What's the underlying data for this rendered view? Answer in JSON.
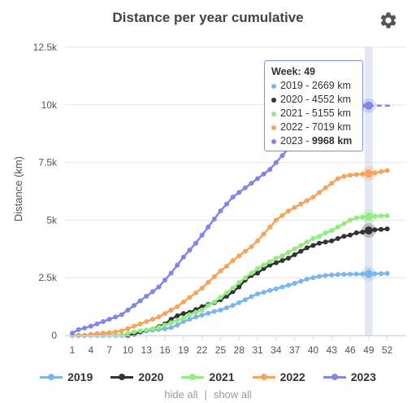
{
  "chart_data": {
    "type": "line",
    "title": "Distance per year cumulative",
    "ylabel": "Distance (km)",
    "xlabel": "",
    "x_ticks": [
      "1",
      "4",
      "7",
      "10",
      "13",
      "16",
      "19",
      "22",
      "25",
      "28",
      "31",
      "34",
      "37",
      "40",
      "43",
      "46",
      "49",
      "52"
    ],
    "y_ticks": [
      {
        "value": 0,
        "label": "0"
      },
      {
        "value": 2500,
        "label": "2.5k"
      },
      {
        "value": 5000,
        "label": "5k"
      },
      {
        "value": 7500,
        "label": "7.5k"
      },
      {
        "value": 10000,
        "label": "10k"
      },
      {
        "value": 12500,
        "label": "12.5k"
      }
    ],
    "xlim": [
      1,
      53
    ],
    "ylim": [
      0,
      12500
    ],
    "grid": "horizontal",
    "legend_position": "bottom",
    "highlight_week": 49,
    "series": [
      {
        "name": "2019",
        "color": "#7cb5ec",
        "values": [
          0,
          0,
          0,
          0,
          0,
          0,
          0,
          0,
          0,
          40,
          100,
          150,
          200,
          230,
          260,
          290,
          340,
          440,
          600,
          700,
          800,
          880,
          960,
          1040,
          1100,
          1200,
          1300,
          1420,
          1550,
          1680,
          1800,
          1870,
          1950,
          2020,
          2100,
          2180,
          2260,
          2350,
          2440,
          2500,
          2560,
          2600,
          2620,
          2640,
          2650,
          2655,
          2660,
          2665,
          2669,
          2672,
          2680,
          2690
        ]
      },
      {
        "name": "2020",
        "color": "#333333",
        "values": [
          0,
          0,
          0,
          0,
          0,
          0,
          0,
          0,
          0,
          0,
          50,
          150,
          230,
          280,
          380,
          500,
          700,
          850,
          950,
          1000,
          1120,
          1250,
          1340,
          1420,
          1550,
          1700,
          1900,
          2100,
          2400,
          2600,
          2700,
          2900,
          3050,
          3150,
          3250,
          3350,
          3500,
          3650,
          3800,
          3900,
          4000,
          4050,
          4100,
          4200,
          4300,
          4350,
          4450,
          4480,
          4552,
          4580,
          4600,
          4620
        ]
      },
      {
        "name": "2021",
        "color": "#90ed7d",
        "values": [
          0,
          0,
          0,
          0,
          0,
          0,
          0,
          0,
          0,
          100,
          150,
          200,
          240,
          280,
          350,
          450,
          550,
          650,
          750,
          900,
          1000,
          1100,
          1300,
          1450,
          1650,
          1850,
          2050,
          2300,
          2500,
          2700,
          2900,
          3050,
          3200,
          3350,
          3450,
          3600,
          3750,
          3900,
          4050,
          4200,
          4300,
          4450,
          4550,
          4700,
          4850,
          5000,
          5100,
          5130,
          5155,
          5170,
          5180,
          5190
        ]
      },
      {
        "name": "2022",
        "color": "#f7a35c",
        "values": [
          0,
          0,
          0,
          50,
          80,
          100,
          120,
          150,
          200,
          300,
          400,
          500,
          600,
          700,
          800,
          950,
          1100,
          1250,
          1450,
          1650,
          1850,
          2050,
          2300,
          2550,
          2800,
          3000,
          3250,
          3450,
          3650,
          3850,
          4100,
          4400,
          4700,
          5000,
          5200,
          5400,
          5550,
          5700,
          5850,
          6000,
          6200,
          6400,
          6600,
          6800,
          6900,
          6950,
          6980,
          7000,
          7019,
          7050,
          7100,
          7150
        ]
      },
      {
        "name": "2023",
        "color": "#8085e9",
        "values": [
          100,
          250,
          320,
          400,
          500,
          600,
          700,
          800,
          900,
          1100,
          1300,
          1500,
          1700,
          1900,
          2100,
          2400,
          2700,
          3050,
          3400,
          3700,
          4000,
          4350,
          4700,
          5050,
          5400,
          5700,
          6000,
          6200,
          6400,
          6600,
          6800,
          7000,
          7200,
          7500,
          7800,
          8100,
          8400,
          8700,
          9000,
          9300,
          9500,
          9650,
          9800,
          9900,
          9940,
          9950,
          9955,
          9960,
          9968
        ]
      }
    ]
  },
  "tooltip": {
    "title": "Week: 49",
    "rows": [
      {
        "label": "2019 - 2669 km",
        "color": "#7cb5ec"
      },
      {
        "label": "2020 - 4552 km",
        "color": "#333333"
      },
      {
        "label": "2021 - 5155 km",
        "color": "#90ed7d"
      },
      {
        "label": "2022 - 7019 km",
        "color": "#f7a35c"
      },
      {
        "label_prefix": "2023 - ",
        "label_bold": "9968 km",
        "color": "#8085e9"
      }
    ]
  },
  "legend": {
    "items": [
      {
        "label": "2019",
        "color": "#7cb5ec"
      },
      {
        "label": "2020",
        "color": "#333333"
      },
      {
        "label": "2021",
        "color": "#90ed7d"
      },
      {
        "label": "2022",
        "color": "#f7a35c"
      },
      {
        "label": "2023",
        "color": "#8085e9"
      }
    ],
    "hide_all": "hide all",
    "separator": "|",
    "show_all": "show all"
  },
  "icons": {
    "settings": "gear-icon"
  }
}
